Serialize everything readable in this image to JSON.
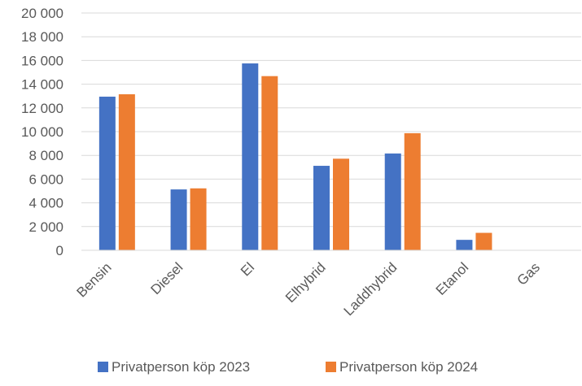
{
  "chart_data": {
    "type": "bar",
    "title": "",
    "xlabel": "",
    "ylabel": "",
    "categories": [
      "Bensin",
      "Diesel",
      "El",
      "Elhybrid",
      "Laddhybrid",
      "Etanol",
      "Gas"
    ],
    "series": [
      {
        "name": "Privatperson köp 2023",
        "color": "#4472C4",
        "values": [
          12950,
          5130,
          15750,
          7120,
          8160,
          880,
          0
        ]
      },
      {
        "name": "Privatperson köp 2024",
        "color": "#ED7D31",
        "values": [
          13150,
          5220,
          14680,
          7720,
          9870,
          1470,
          0
        ]
      }
    ],
    "ylim": [
      0,
      20000
    ],
    "yticks": [
      0,
      2000,
      4000,
      6000,
      8000,
      10000,
      12000,
      14000,
      16000,
      18000,
      20000
    ],
    "ytick_labels": [
      "0",
      "2 000",
      "4 000",
      "6 000",
      "8 000",
      "10 000",
      "12 000",
      "14 000",
      "16 000",
      "18 000",
      "20 000"
    ],
    "grid": true,
    "gridline_color": "#D9D9D9",
    "legend_position": "bottom"
  }
}
